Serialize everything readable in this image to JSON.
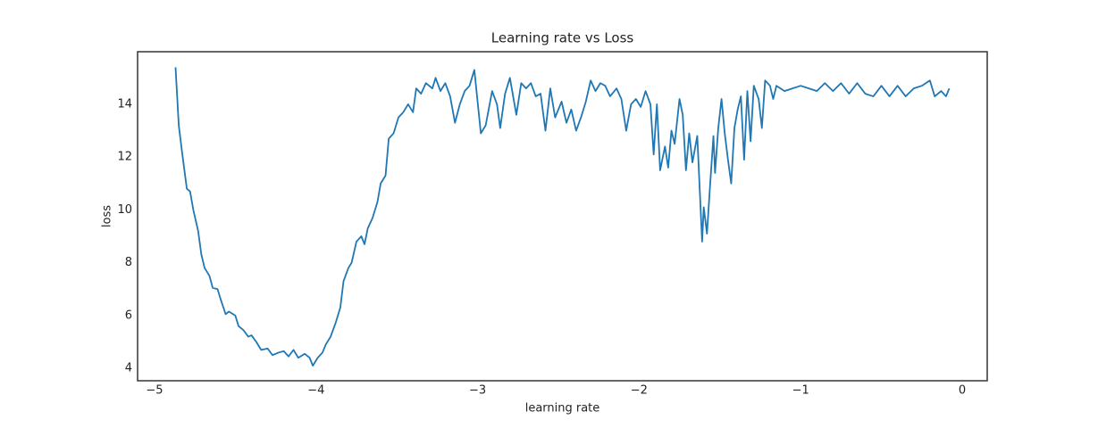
{
  "chart_data": {
    "type": "line",
    "title": "Learning rate vs Loss",
    "x_label": "learning rate",
    "y_label": "loss",
    "x": [
      -4.87,
      -4.85,
      -4.83,
      -4.8,
      -4.78,
      -4.76,
      -4.73,
      -4.71,
      -4.69,
      -4.66,
      -4.64,
      -4.61,
      -4.59,
      -4.56,
      -4.54,
      -4.5,
      -4.48,
      -4.45,
      -4.42,
      -4.4,
      -4.37,
      -4.34,
      -4.3,
      -4.27,
      -4.23,
      -4.2,
      -4.17,
      -4.14,
      -4.11,
      -4.07,
      -4.04,
      -4.02,
      -3.99,
      -3.96,
      -3.94,
      -3.91,
      -3.88,
      -3.85,
      -3.83,
      -3.8,
      -3.78,
      -3.75,
      -3.72,
      -3.7,
      -3.68,
      -3.65,
      -3.62,
      -3.6,
      -3.57,
      -3.55,
      -3.52,
      -3.49,
      -3.46,
      -3.43,
      -3.4,
      -3.38,
      -3.35,
      -3.32,
      -3.28,
      -3.26,
      -3.23,
      -3.2,
      -3.17,
      -3.14,
      -3.11,
      -3.08,
      -3.05,
      -3.02,
      -2.98,
      -2.95,
      -2.91,
      -2.88,
      -2.86,
      -2.83,
      -2.8,
      -2.76,
      -2.73,
      -2.7,
      -2.67,
      -2.64,
      -2.61,
      -2.58,
      -2.55,
      -2.52,
      -2.48,
      -2.45,
      -2.42,
      -2.39,
      -2.36,
      -2.33,
      -2.3,
      -2.27,
      -2.24,
      -2.21,
      -2.18,
      -2.14,
      -2.11,
      -2.08,
      -2.05,
      -2.02,
      -1.99,
      -1.96,
      -1.93,
      -1.91,
      -1.89,
      -1.87,
      -1.84,
      -1.82,
      -1.8,
      -1.78,
      -1.75,
      -1.73,
      -1.71,
      -1.69,
      -1.67,
      -1.64,
      -1.61,
      -1.6,
      -1.58,
      -1.56,
      -1.54,
      -1.53,
      -1.51,
      -1.49,
      -1.47,
      -1.45,
      -1.43,
      -1.41,
      -1.39,
      -1.37,
      -1.35,
      -1.33,
      -1.31,
      -1.29,
      -1.26,
      -1.24,
      -1.22,
      -1.19,
      -1.17,
      -1.15,
      -1.1,
      -1.05,
      -1.0,
      -0.95,
      -0.9,
      -0.85,
      -0.8,
      -0.75,
      -0.7,
      -0.65,
      -0.6,
      -0.55,
      -0.5,
      -0.45,
      -0.4,
      -0.35,
      -0.3,
      -0.25,
      -0.2,
      -0.17,
      -0.13,
      -0.1,
      -0.08
    ],
    "series": [
      {
        "name": "loss",
        "color": "#1f77b4",
        "values": [
          15.4,
          13.2,
          12.2,
          10.8,
          10.7,
          10.0,
          9.2,
          8.3,
          7.8,
          7.5,
          7.05,
          7.0,
          6.6,
          6.05,
          6.15,
          6.0,
          5.6,
          5.45,
          5.2,
          5.25,
          5.0,
          4.7,
          4.75,
          4.5,
          4.6,
          4.65,
          4.45,
          4.7,
          4.4,
          4.55,
          4.4,
          4.1,
          4.4,
          4.6,
          4.9,
          5.2,
          5.7,
          6.3,
          7.3,
          7.8,
          8.0,
          8.8,
          9.0,
          8.7,
          9.3,
          9.7,
          10.3,
          11.0,
          11.3,
          12.7,
          12.9,
          13.5,
          13.7,
          14.0,
          13.7,
          14.6,
          14.4,
          14.8,
          14.6,
          15.0,
          14.5,
          14.8,
          14.3,
          13.3,
          14.0,
          14.5,
          14.7,
          15.3,
          12.9,
          13.2,
          14.5,
          14.0,
          13.1,
          14.4,
          15.0,
          13.6,
          14.8,
          14.6,
          14.8,
          14.3,
          14.4,
          13.0,
          14.6,
          13.5,
          14.1,
          13.3,
          13.8,
          13.0,
          13.5,
          14.1,
          14.9,
          14.5,
          14.8,
          14.7,
          14.3,
          14.6,
          14.2,
          13.0,
          14.0,
          14.2,
          13.9,
          14.5,
          14.0,
          12.1,
          14.0,
          11.5,
          12.4,
          11.6,
          13.0,
          12.5,
          14.2,
          13.6,
          11.5,
          12.9,
          11.8,
          12.8,
          8.8,
          10.1,
          9.1,
          11.0,
          12.8,
          11.4,
          13.1,
          14.2,
          12.9,
          11.9,
          11.0,
          13.1,
          13.8,
          14.3,
          11.9,
          14.5,
          12.6,
          14.7,
          14.2,
          13.1,
          14.9,
          14.7,
          14.2,
          14.7,
          14.5,
          14.6,
          14.7,
          14.6,
          14.5,
          14.8,
          14.5,
          14.8,
          14.4,
          14.8,
          14.4,
          14.3,
          14.7,
          14.3,
          14.7,
          14.3,
          14.6,
          14.7,
          14.9,
          14.3,
          14.5,
          14.3,
          14.6
        ]
      }
    ],
    "xlim": [
      -5.105,
      0.155
    ],
    "ylim": [
      3.53,
      15.99
    ],
    "xticks": [
      {
        "value": -5,
        "label": "−5"
      },
      {
        "value": -4,
        "label": "−4"
      },
      {
        "value": -3,
        "label": "−3"
      },
      {
        "value": -2,
        "label": "−2"
      },
      {
        "value": -1,
        "label": "−1"
      },
      0
    ],
    "yticks": [
      4,
      6,
      8,
      10,
      12,
      14
    ],
    "grid": false
  }
}
